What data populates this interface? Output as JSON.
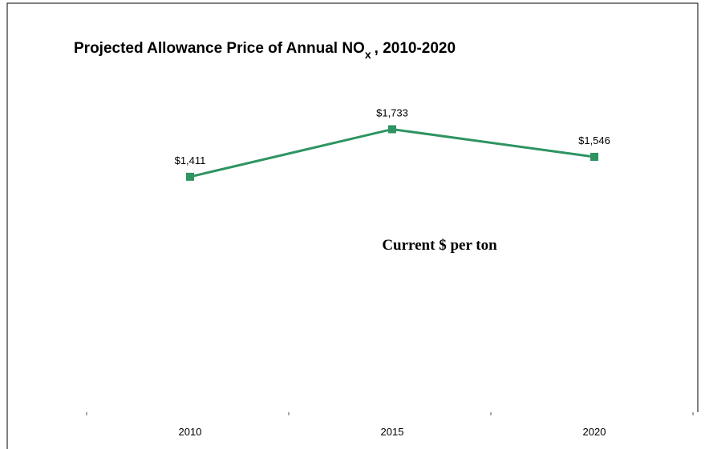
{
  "chart_data": {
    "type": "line",
    "title": "Projected Allowance Price of Annual NO",
    "title_subscript": "x",
    "title_suffix": ", 2010-2020",
    "annotation": "Current $ per ton",
    "categories": [
      "2010",
      "2015",
      "2020"
    ],
    "values": [
      1411,
      1733,
      1546
    ],
    "value_labels": [
      "$1,411",
      "$1,733",
      "$1,546"
    ],
    "color": "#2e9462",
    "ylim": [
      -200,
      2500
    ]
  }
}
